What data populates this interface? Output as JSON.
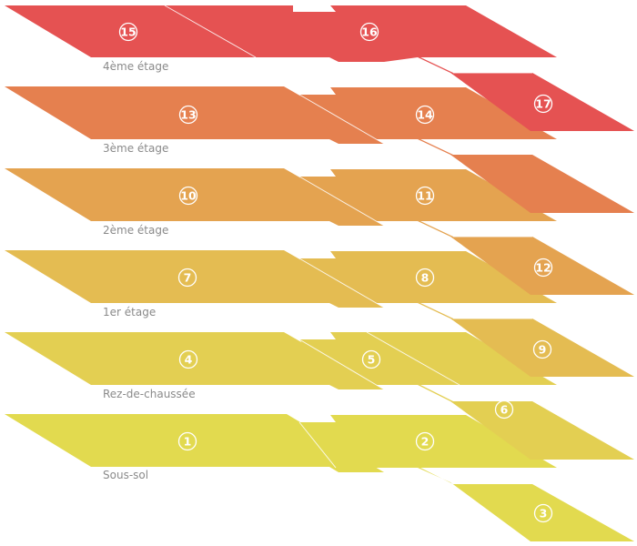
{
  "floors": [
    {
      "key": "basement",
      "label": "Sous-sol",
      "color": "#e2da4f",
      "rooms": [
        "1",
        "2",
        "3"
      ]
    },
    {
      "key": "ground",
      "label": "Rez-de-chaussée",
      "color": "#e3cf52",
      "rooms": [
        "4",
        "5",
        "6"
      ]
    },
    {
      "key": "first",
      "label": "1er étage",
      "color": "#e4bc52",
      "rooms": [
        "7",
        "8",
        "9"
      ]
    },
    {
      "key": "second",
      "label": "2ème étage",
      "color": "#e4a350",
      "rooms": [
        "10",
        "11",
        "12"
      ]
    },
    {
      "key": "third",
      "label": "3ème étage",
      "color": "#e5804f",
      "rooms": [
        "13",
        "14"
      ]
    },
    {
      "key": "fourth",
      "label": "4ème étage",
      "color": "#e55252",
      "rooms": [
        "15",
        "16",
        "17"
      ]
    }
  ]
}
